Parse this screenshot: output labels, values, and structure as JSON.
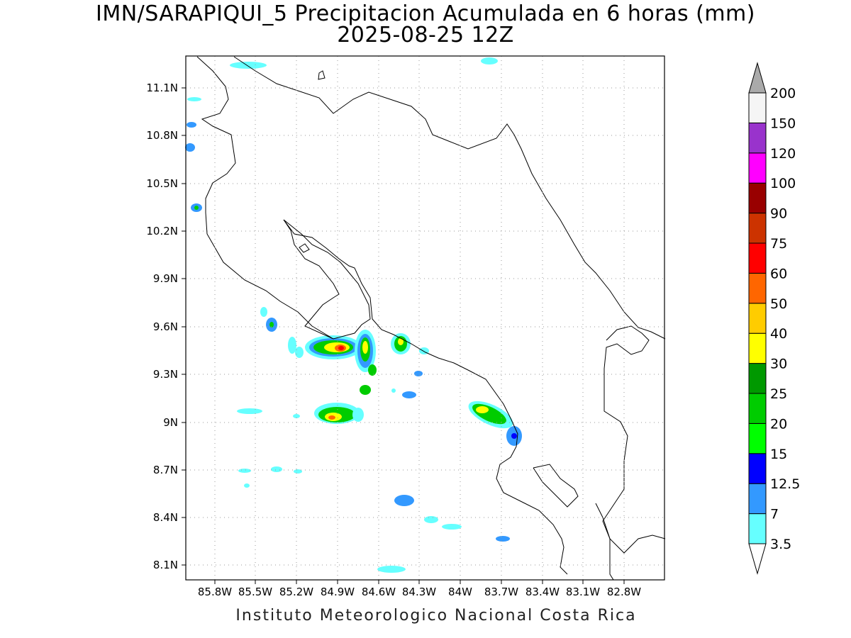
{
  "title": {
    "line1": "IMN/SARAPIQUI_5 Precipitacion Acumulada en 6 horas (mm)",
    "line2": "2025-08-25 12Z"
  },
  "footer": "Instituto Meteorologico Nacional Costa Rica",
  "axes": {
    "lat_labels": [
      "11.1N",
      "10.8N",
      "10.5N",
      "10.2N",
      "9.9N",
      "9.6N",
      "9.3N",
      "9N",
      "8.7N",
      "8.4N",
      "8.1N"
    ],
    "lon_labels": [
      "85.8W",
      "85.5W",
      "85.2W",
      "84.9W",
      "84.6W",
      "84.3W",
      "84W",
      "83.7W",
      "83.4W",
      "83.1W",
      "82.8W"
    ],
    "grid": "dotted"
  },
  "colorbar": {
    "levels": [
      "3.5",
      "7",
      "12.5",
      "15",
      "20",
      "25",
      "30",
      "40",
      "50",
      "60",
      "75",
      "90",
      "100",
      "120",
      "150",
      "200"
    ],
    "colors": [
      "#ffffff",
      "#66ffff",
      "#3399ff",
      "#0000ff",
      "#00ff00",
      "#00cc00",
      "#009900",
      "#ffff00",
      "#ffcc00",
      "#ff6600",
      "#ff0000",
      "#cc3300",
      "#990000",
      "#ff00ff",
      "#9933cc",
      "#f5f5f5",
      "#aaaaaa"
    ]
  }
}
